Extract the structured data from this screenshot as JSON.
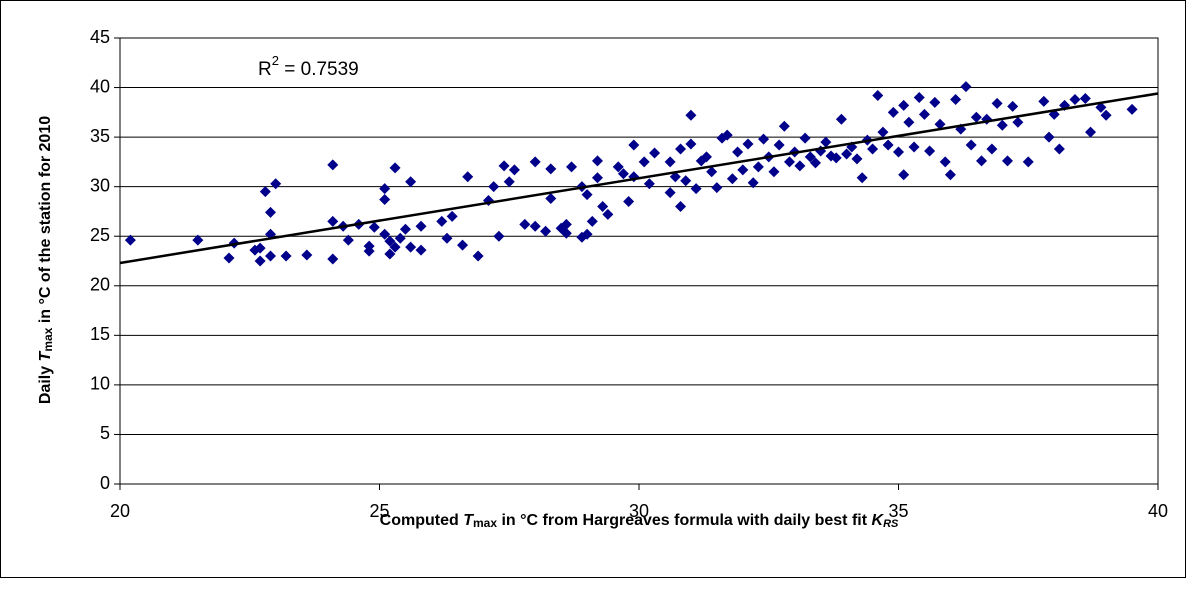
{
  "chart_data": {
    "type": "scatter",
    "annotation": [
      "R",
      "2",
      " = 0.7539"
    ],
    "x_label": [
      "Computed ",
      "T",
      "max",
      " in °C from Hargreaves formula with daily best fit ",
      "K",
      "RS"
    ],
    "y_label": [
      "Daily ",
      "T",
      "max",
      " in °C of the station for 2010"
    ],
    "xlim": [
      20,
      40
    ],
    "xticks": [
      20,
      25,
      30,
      35,
      40
    ],
    "ylim": [
      0,
      45
    ],
    "yticks": [
      0,
      5,
      10,
      15,
      20,
      25,
      30,
      35,
      40,
      45
    ],
    "grid": true,
    "trendline": {
      "color": "#000000",
      "x": [
        20,
        40
      ],
      "y": [
        22.3,
        39.4
      ]
    },
    "series": [
      {
        "color": "#00008b",
        "x": [
          20.2,
          21.5,
          22.1,
          22.2,
          22.6,
          22.7,
          22.7,
          22.8,
          22.9,
          22.9,
          22.9,
          23.0,
          23.2,
          23.6,
          24.1,
          24.1,
          24.1,
          24.3,
          24.4,
          24.6,
          24.8,
          24.8,
          24.9,
          25.1,
          25.1,
          25.1,
          25.2,
          25.2,
          25.3,
          25.3,
          25.4,
          25.5,
          25.6,
          25.6,
          25.8,
          25.8,
          26.2,
          26.3,
          26.4,
          26.6,
          26.7,
          26.9,
          27.1,
          27.2,
          27.3,
          27.4,
          27.5,
          27.6,
          27.8,
          28.0,
          28.0,
          28.2,
          28.3,
          28.3,
          28.5,
          28.6,
          28.6,
          28.7,
          28.9,
          28.9,
          29.0,
          29.0,
          29.1,
          29.2,
          29.2,
          29.3,
          29.4,
          29.6,
          29.7,
          29.8,
          29.9,
          29.9,
          30.1,
          30.2,
          30.3,
          30.6,
          30.6,
          30.7,
          30.8,
          30.8,
          30.9,
          31.0,
          31.0,
          31.1,
          31.2,
          31.3,
          31.4,
          31.5,
          31.6,
          31.7,
          31.8,
          31.9,
          32.0,
          32.1,
          32.2,
          32.3,
          32.4,
          32.5,
          32.6,
          32.7,
          32.8,
          32.9,
          33.0,
          33.1,
          33.2,
          33.3,
          33.4,
          33.5,
          33.6,
          33.7,
          33.8,
          33.9,
          34.0,
          34.1,
          34.2,
          34.3,
          34.4,
          34.5,
          34.6,
          34.7,
          34.8,
          34.9,
          35.0,
          35.1,
          35.1,
          35.2,
          35.3,
          35.4,
          35.5,
          35.6,
          35.7,
          35.8,
          35.9,
          36.0,
          36.1,
          36.2,
          36.3,
          36.4,
          36.5,
          36.6,
          36.7,
          36.8,
          36.9,
          37.0,
          37.1,
          37.2,
          37.3,
          37.5,
          37.8,
          37.9,
          38.0,
          38.1,
          38.2,
          38.4,
          38.6,
          38.7,
          38.9,
          39.0,
          39.5
        ],
        "values": [
          24.6,
          24.6,
          22.8,
          24.3,
          23.6,
          22.5,
          23.8,
          29.5,
          27.4,
          25.2,
          23.0,
          30.3,
          23.0,
          23.1,
          22.7,
          32.2,
          26.5,
          26.0,
          24.6,
          26.2,
          24.0,
          23.5,
          25.9,
          29.8,
          28.7,
          25.2,
          23.2,
          24.5,
          31.9,
          23.9,
          24.8,
          25.7,
          30.5,
          23.9,
          23.6,
          26.0,
          26.5,
          24.8,
          27.0,
          24.1,
          31.0,
          23.0,
          28.6,
          30.0,
          25.0,
          32.1,
          30.5,
          31.7,
          26.2,
          26.0,
          32.5,
          25.5,
          31.8,
          28.8,
          25.8,
          25.3,
          26.2,
          32.0,
          30.0,
          24.9,
          25.2,
          29.2,
          26.5,
          32.6,
          30.9,
          28.0,
          27.2,
          32.0,
          31.3,
          28.5,
          34.2,
          31.0,
          32.5,
          30.3,
          33.4,
          32.5,
          29.4,
          31.0,
          33.8,
          28.0,
          30.6,
          37.2,
          34.3,
          29.8,
          32.6,
          33.0,
          31.5,
          29.9,
          34.9,
          35.2,
          30.8,
          33.5,
          31.7,
          34.3,
          30.4,
          32.0,
          34.8,
          33.0,
          31.5,
          34.2,
          36.1,
          32.5,
          33.5,
          32.1,
          34.9,
          33.0,
          32.4,
          33.6,
          34.5,
          33.1,
          32.9,
          36.8,
          33.3,
          34.0,
          32.8,
          30.9,
          34.7,
          33.8,
          39.2,
          35.5,
          34.2,
          37.5,
          33.5,
          38.2,
          31.2,
          36.5,
          34.0,
          39.0,
          37.3,
          33.6,
          38.5,
          36.3,
          32.5,
          31.2,
          38.8,
          35.8,
          40.1,
          34.2,
          37.0,
          32.6,
          36.8,
          33.8,
          38.4,
          36.2,
          32.6,
          38.1,
          36.5,
          32.5,
          38.6,
          35.0,
          37.3,
          33.8,
          38.2,
          38.8,
          38.9,
          35.5,
          38.0,
          37.2,
          37.8
        ]
      }
    ]
  }
}
